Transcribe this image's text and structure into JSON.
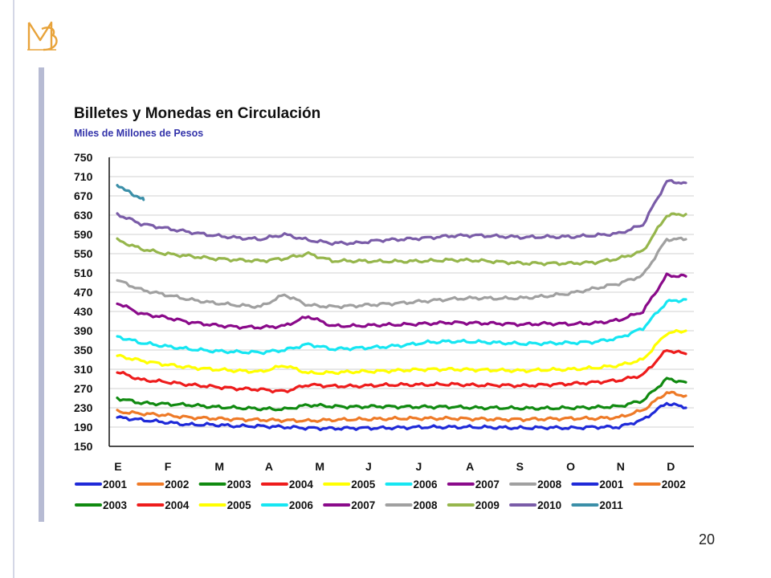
{
  "page": {
    "page_number": "20",
    "logo_icon": "bm-monogram-icon",
    "logo_color": "#e8a33a"
  },
  "chart_data": {
    "type": "line",
    "title": "Billetes y Monedas en Circulación",
    "subtitle": "Miles de Millones de Pesos",
    "xlabel": "",
    "ylabel": "",
    "months": [
      "E",
      "F",
      "M",
      "A",
      "M",
      "J",
      "J",
      "A",
      "S",
      "O",
      "N",
      "D"
    ],
    "yticks": [
      150,
      190,
      230,
      270,
      310,
      350,
      390,
      430,
      470,
      510,
      550,
      590,
      630,
      670,
      710,
      750
    ],
    "ylim": [
      150,
      750
    ],
    "grid": true,
    "legend_position": "bottom",
    "legend": [
      {
        "label": "2001",
        "color": "#1f2ad8"
      },
      {
        "label": "2002",
        "color": "#ee7a27"
      },
      {
        "label": "2003",
        "color": "#108a10"
      },
      {
        "label": "2004",
        "color": "#ee1c1c"
      },
      {
        "label": "2005",
        "color": "#ffff00"
      },
      {
        "label": "2006",
        "color": "#16e6f2"
      },
      {
        "label": "2007",
        "color": "#8a0a8a"
      },
      {
        "label": "2008",
        "color": "#a0a0a0"
      },
      {
        "label": "2001",
        "color": "#1f2ad8"
      },
      {
        "label": "2002",
        "color": "#ee7a27"
      },
      {
        "label": "2003",
        "color": "#108a10"
      },
      {
        "label": "2004",
        "color": "#ee1c1c"
      },
      {
        "label": "2005",
        "color": "#ffff00"
      },
      {
        "label": "2006",
        "color": "#16e6f2"
      },
      {
        "label": "2007",
        "color": "#8a0a8a"
      },
      {
        "label": "2008",
        "color": "#a0a0a0"
      },
      {
        "label": "2009",
        "color": "#96b64c"
      },
      {
        "label": "2010",
        "color": "#7a5ca8"
      },
      {
        "label": "2011",
        "color": "#3b8fa8"
      }
    ],
    "series": [
      {
        "name": "2001",
        "color": "#1f2ad8",
        "x": [
          0,
          0.5,
          1,
          1.5,
          2,
          2.5,
          3,
          3.5,
          4,
          4.5,
          5,
          5.5,
          6,
          6.5,
          7,
          7.5,
          8,
          8.5,
          9,
          9.5,
          10,
          10.5,
          11,
          11.5,
          11.9
        ],
        "values": [
          210,
          205,
          200,
          195,
          195,
          192,
          192,
          190,
          188,
          187,
          188,
          188,
          189,
          190,
          190,
          190,
          189,
          188,
          189,
          188,
          190,
          190,
          205,
          240,
          230
        ]
      },
      {
        "name": "2002",
        "color": "#ee7a27",
        "x": [
          0,
          0.5,
          1,
          1.5,
          2,
          2.5,
          3,
          3.5,
          4,
          4.5,
          5,
          5.5,
          6,
          6.5,
          7,
          7.5,
          8,
          8.5,
          9,
          9.5,
          10,
          10.5,
          11,
          11.5,
          11.9
        ],
        "values": [
          222,
          218,
          215,
          210,
          208,
          206,
          205,
          204,
          203,
          205,
          206,
          207,
          208,
          208,
          208,
          207,
          206,
          206,
          207,
          208,
          208,
          210,
          225,
          262,
          255
        ]
      },
      {
        "name": "2003",
        "color": "#108a10",
        "x": [
          0,
          0.5,
          1,
          1.5,
          2,
          2.5,
          3,
          3.5,
          4,
          4.5,
          5,
          5.5,
          6,
          6.5,
          7,
          7.5,
          8,
          8.5,
          9,
          9.5,
          10,
          10.5,
          11,
          11.5,
          11.9
        ],
        "values": [
          250,
          240,
          238,
          236,
          232,
          230,
          228,
          227,
          236,
          233,
          232,
          233,
          232,
          232,
          232,
          230,
          230,
          229,
          229,
          230,
          231,
          233,
          245,
          290,
          283
        ]
      },
      {
        "name": "2004",
        "color": "#ee1c1c",
        "x": [
          0,
          0.5,
          1,
          1.5,
          2,
          2.5,
          3,
          3.5,
          4,
          4.5,
          5,
          5.5,
          6,
          6.5,
          7,
          7.5,
          8,
          8.5,
          9,
          9.5,
          10,
          10.5,
          11,
          11.5,
          11.9
        ],
        "values": [
          305,
          288,
          284,
          278,
          274,
          270,
          268,
          264,
          278,
          275,
          275,
          277,
          278,
          278,
          279,
          277,
          277,
          276,
          278,
          280,
          283,
          287,
          298,
          350,
          342
        ]
      },
      {
        "name": "2005",
        "color": "#ffff00",
        "x": [
          0,
          0.5,
          1,
          1.5,
          2,
          2.5,
          3,
          3.5,
          4,
          4.5,
          5,
          5.5,
          6,
          6.5,
          7,
          7.5,
          8,
          8.5,
          9,
          9.5,
          10,
          10.5,
          11,
          11.5,
          11.9
        ],
        "values": [
          338,
          328,
          320,
          314,
          310,
          307,
          305,
          318,
          302,
          303,
          305,
          306,
          308,
          310,
          310,
          309,
          308,
          307,
          309,
          310,
          313,
          318,
          330,
          385,
          390
        ]
      },
      {
        "name": "2006",
        "color": "#16e6f2",
        "x": [
          0,
          0.5,
          1,
          1.5,
          2,
          2.5,
          3,
          3.5,
          4,
          4.5,
          5,
          5.5,
          6,
          6.5,
          7,
          7.5,
          8,
          8.5,
          9,
          9.5,
          10,
          10.5,
          11,
          11.5,
          11.9
        ],
        "values": [
          378,
          365,
          358,
          352,
          348,
          346,
          345,
          350,
          362,
          352,
          354,
          356,
          360,
          366,
          368,
          367,
          365,
          363,
          364,
          365,
          367,
          375,
          395,
          450,
          455
        ]
      },
      {
        "name": "2007",
        "color": "#8a0a8a",
        "x": [
          0,
          0.5,
          1,
          1.5,
          2,
          2.5,
          3,
          3.5,
          4,
          4.5,
          5,
          5.5,
          6,
          6.5,
          7,
          7.5,
          8,
          8.5,
          9,
          9.5,
          10,
          10.5,
          11,
          11.5,
          11.9
        ],
        "values": [
          448,
          425,
          418,
          408,
          402,
          398,
          397,
          400,
          420,
          400,
          400,
          402,
          403,
          405,
          407,
          406,
          405,
          403,
          405,
          404,
          406,
          412,
          430,
          505,
          503
        ]
      },
      {
        "name": "2008",
        "color": "#a0a0a0",
        "x": [
          0,
          0.5,
          1,
          1.5,
          2,
          2.5,
          3,
          3.5,
          4,
          4.5,
          5,
          5.5,
          6,
          6.5,
          7,
          7.5,
          8,
          8.5,
          9,
          9.5,
          10,
          10.5,
          11,
          11.5,
          11.9
        ],
        "values": [
          495,
          475,
          465,
          455,
          448,
          443,
          440,
          465,
          443,
          440,
          442,
          445,
          448,
          452,
          456,
          458,
          457,
          458,
          462,
          468,
          478,
          488,
          505,
          580,
          580
        ]
      },
      {
        "name": "2009",
        "color": "#96b64c",
        "x": [
          0,
          0.5,
          1,
          1.5,
          2,
          2.5,
          3,
          3.5,
          4,
          4.5,
          5,
          5.5,
          6,
          6.5,
          7,
          7.5,
          8,
          8.5,
          9,
          9.5,
          10,
          10.5,
          11,
          11.5,
          11.9
        ],
        "values": [
          578,
          560,
          550,
          545,
          540,
          537,
          535,
          540,
          550,
          535,
          535,
          534,
          534,
          535,
          537,
          536,
          533,
          530,
          530,
          530,
          532,
          540,
          555,
          630,
          632
        ]
      },
      {
        "name": "2010",
        "color": "#7a5ca8",
        "x": [
          0,
          0.5,
          1,
          1.5,
          2,
          2.5,
          3,
          3.5,
          4,
          4.5,
          5,
          5.5,
          6,
          6.5,
          7,
          7.5,
          8,
          8.5,
          9,
          9.5,
          10,
          10.5,
          11,
          11.5,
          11.9
        ],
        "values": [
          632,
          612,
          603,
          595,
          588,
          583,
          580,
          590,
          578,
          572,
          572,
          578,
          580,
          583,
          587,
          588,
          586,
          584,
          585,
          585,
          588,
          592,
          610,
          700,
          697
        ]
      },
      {
        "name": "2011",
        "color": "#3b8fa8",
        "x": [
          0,
          0.15,
          0.3,
          0.45,
          0.55
        ],
        "values": [
          695,
          682,
          675,
          668,
          662
        ]
      }
    ]
  }
}
